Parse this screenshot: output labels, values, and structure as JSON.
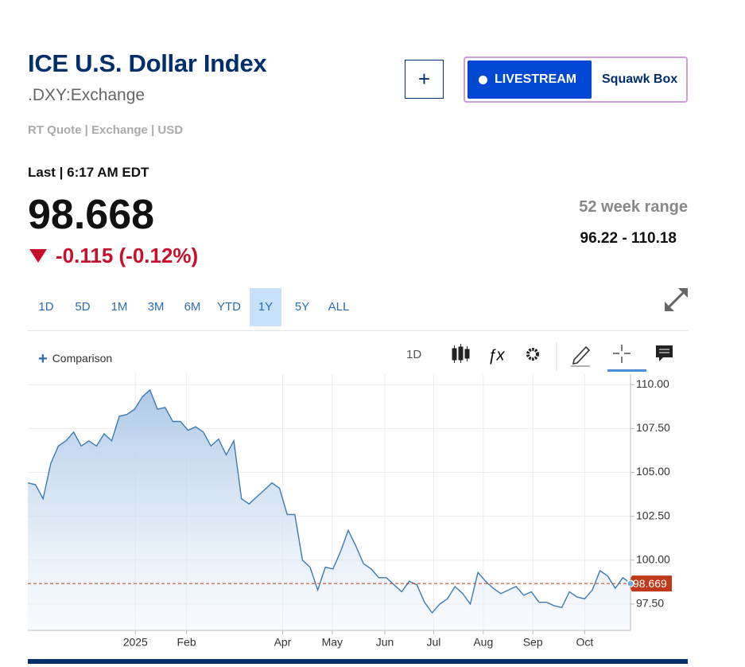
{
  "header": {
    "title": "ICE U.S. Dollar Index",
    "symbol": ".DXY:Exchange",
    "meta": "RT Quote | Exchange | USD"
  },
  "buttons": {
    "add": "+",
    "livestream": "LIVESTREAM",
    "squawk": "Squawk Box"
  },
  "quote": {
    "last": "Last | 6:17 AM EDT",
    "price": "98.668",
    "change": "-0.115 (-0.12%)",
    "range_label": "52 week range",
    "range": "96.22 - 110.18"
  },
  "periods": [
    "1D",
    "5D",
    "1M",
    "3M",
    "6M",
    "YTD",
    "1Y",
    "5Y",
    "ALL"
  ],
  "active_period": 6,
  "toolbar": {
    "comparison": "Comparison",
    "interval": "1D"
  },
  "chart_data": {
    "type": "area",
    "color": "#3b7bb4",
    "values": [
      104.4,
      104.3,
      103.5,
      105.5,
      106.5,
      106.8,
      107.3,
      106.5,
      106.8,
      106.5,
      107.2,
      106.8,
      108.2,
      108.3,
      108.6,
      109.3,
      109.7,
      108.6,
      108.7,
      107.9,
      107.9,
      107.4,
      107.6,
      107.3,
      106.5,
      106.9,
      106.0,
      106.8,
      103.5,
      103.2,
      103.6,
      104.0,
      104.4,
      104.1,
      102.6,
      102.6,
      100.0,
      99.6,
      98.3,
      99.6,
      99.5,
      100.5,
      101.7,
      100.8,
      99.8,
      99.5,
      99.0,
      99.0,
      98.6,
      98.2,
      98.8,
      98.6,
      97.6,
      97.0,
      97.5,
      97.8,
      98.5,
      98.1,
      97.5,
      99.3,
      98.8,
      98.4,
      98.1,
      98.3,
      98.5,
      98.0,
      98.2,
      97.6,
      97.6,
      97.4,
      97.3,
      98.2,
      97.9,
      97.8,
      98.3,
      99.4,
      99.1,
      98.4,
      99.0,
      98.67
    ],
    "xlim": [
      0,
      79
    ],
    "xticks": [
      {
        "value": 14.1,
        "label": "2025"
      },
      {
        "value": 20.8,
        "label": "Feb"
      },
      {
        "value": 33.4,
        "label": "Apr"
      },
      {
        "value": 39.9,
        "label": "May"
      },
      {
        "value": 46.8,
        "label": "Jun"
      },
      {
        "value": 53.2,
        "label": "Jul"
      },
      {
        "value": 59.7,
        "label": "Aug"
      },
      {
        "value": 66.2,
        "label": "Sep"
      },
      {
        "value": 73,
        "label": "Oct"
      }
    ],
    "ylim": [
      96,
      110.6
    ],
    "yticks": [
      {
        "value": 97.5,
        "label": "97.50"
      },
      {
        "value": 100,
        "label": "100.00"
      },
      {
        "value": 102.5,
        "label": "102.50"
      },
      {
        "value": 105,
        "label": "105.00"
      },
      {
        "value": 107.5,
        "label": "107.50"
      },
      {
        "value": 110,
        "label": "110.00"
      }
    ],
    "grid": true,
    "last_value": 98.669,
    "last_color": "#c1391b"
  }
}
